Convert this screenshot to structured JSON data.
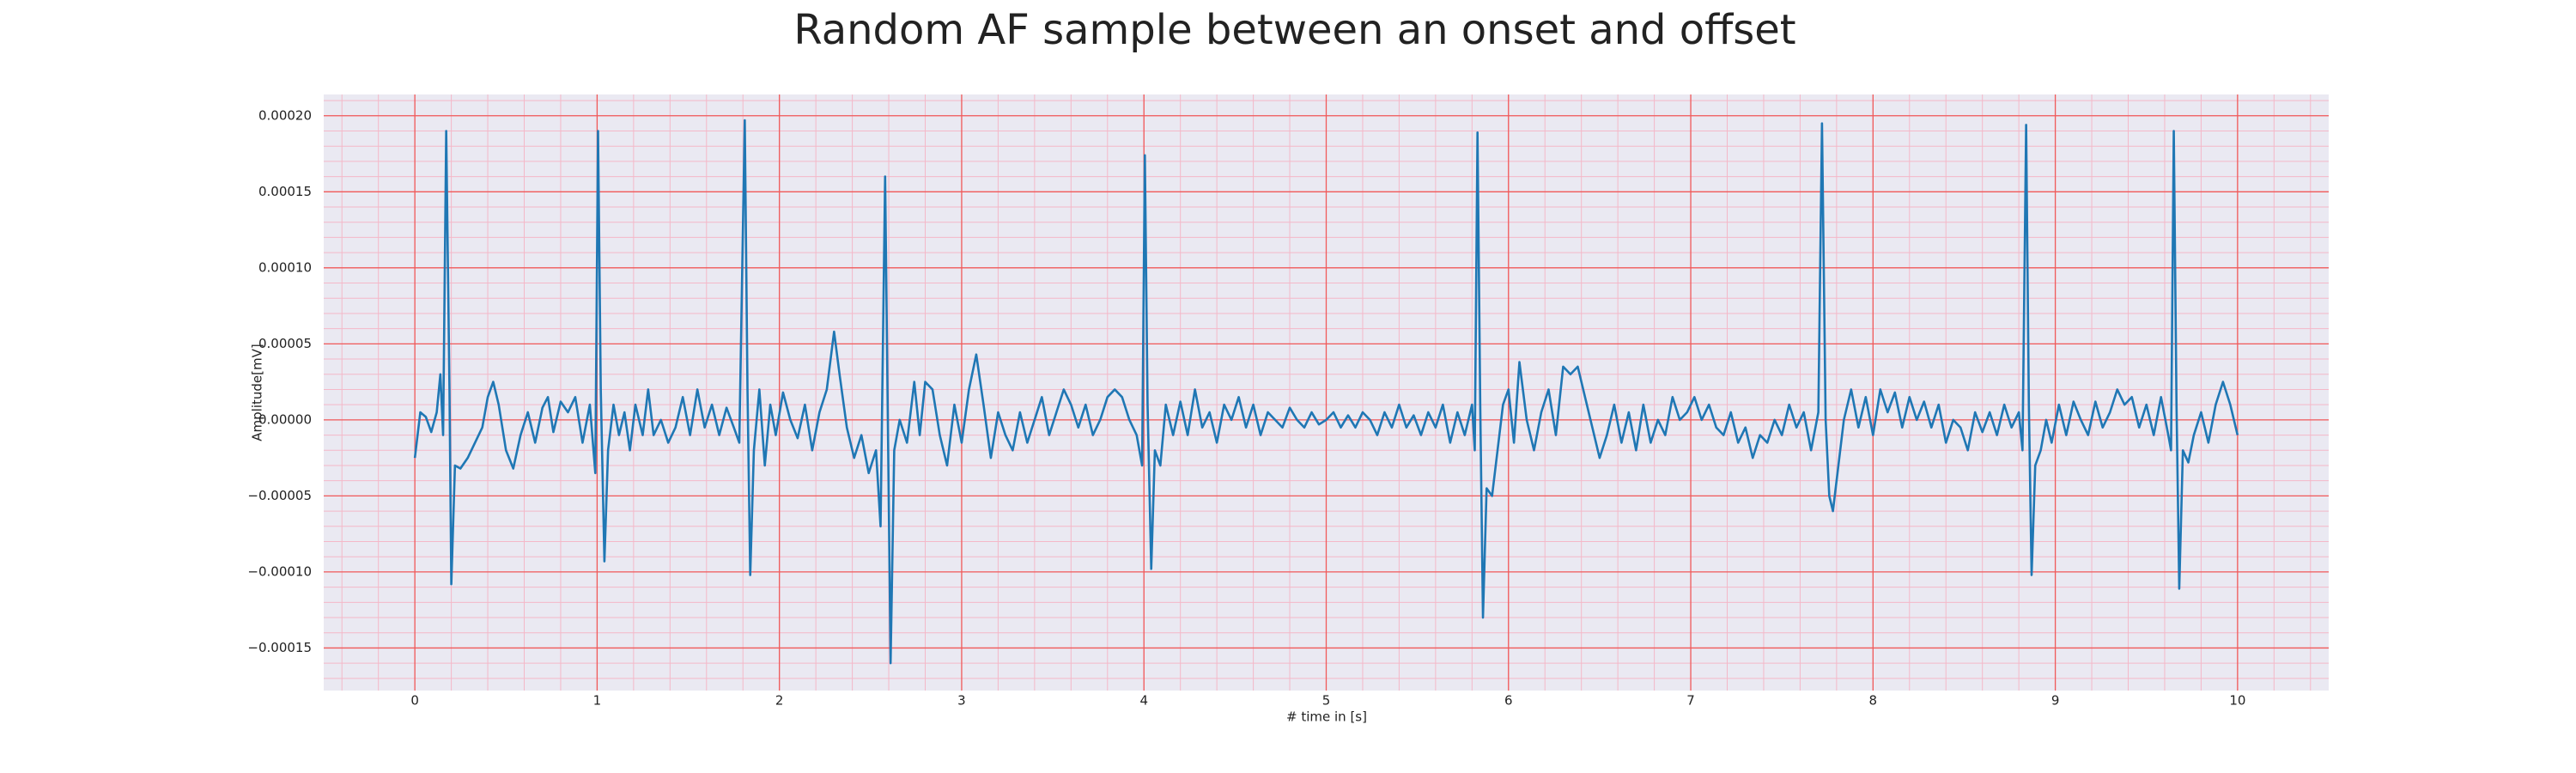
{
  "chart_data": {
    "type": "line",
    "title": "Random AF sample between an onset and offset",
    "x_label": "# time in [s]",
    "y_label": "Amplitude[mV]",
    "xlim": [
      -0.5,
      10.5
    ],
    "ylim": [
      -0.000178,
      0.000214
    ],
    "xticks": [
      0,
      1,
      2,
      3,
      4,
      5,
      6,
      7,
      8,
      9,
      10
    ],
    "yticks": [
      {
        "value": -0.00015,
        "label": "−0.00015"
      },
      {
        "value": -0.0001,
        "label": "−0.00010"
      },
      {
        "value": -5e-05,
        "label": "−0.00005"
      },
      {
        "value": 0,
        "label": "0.00000"
      },
      {
        "value": 5e-05,
        "label": "0.00005"
      },
      {
        "value": 0.0001,
        "label": "0.00010"
      },
      {
        "value": 0.00015,
        "label": "0.00015"
      },
      {
        "value": 0.0002,
        "label": "0.00020"
      }
    ],
    "grid": true,
    "minor_grid": true,
    "grid_color": "#f05a5a",
    "minor_grid_color": "#f4b8c8",
    "background": "#eae9f2",
    "series": [
      {
        "color": "#1f77b4",
        "x": [
          0,
          0.03,
          0.06,
          0.09,
          0.12,
          0.14,
          0.155,
          0.172,
          0.19,
          0.2,
          0.22,
          0.25,
          0.29,
          0.33,
          0.37,
          0.4,
          0.43,
          0.46,
          0.5,
          0.54,
          0.58,
          0.62,
          0.66,
          0.7,
          0.73,
          0.76,
          0.8,
          0.84,
          0.88,
          0.92,
          0.96,
          0.99,
          1.005,
          1.02,
          1.04,
          1.06,
          1.09,
          1.12,
          1.15,
          1.18,
          1.21,
          1.25,
          1.28,
          1.31,
          1.35,
          1.39,
          1.43,
          1.47,
          1.51,
          1.55,
          1.59,
          1.63,
          1.67,
          1.71,
          1.75,
          1.78,
          1.81,
          1.825,
          1.84,
          1.86,
          1.89,
          1.92,
          1.95,
          1.98,
          2.02,
          2.06,
          2.1,
          2.14,
          2.18,
          2.22,
          2.26,
          2.3,
          2.33,
          2.37,
          2.41,
          2.45,
          2.49,
          2.53,
          2.555,
          2.58,
          2.595,
          2.61,
          2.63,
          2.66,
          2.7,
          2.74,
          2.77,
          2.8,
          2.84,
          2.88,
          2.92,
          2.96,
          3,
          3.04,
          3.08,
          3.12,
          3.16,
          3.2,
          3.24,
          3.28,
          3.32,
          3.36,
          3.4,
          3.44,
          3.48,
          3.52,
          3.56,
          3.6,
          3.64,
          3.68,
          3.72,
          3.76,
          3.8,
          3.84,
          3.88,
          3.92,
          3.96,
          3.99,
          4.005,
          4.02,
          4.04,
          4.06,
          4.09,
          4.12,
          4.16,
          4.2,
          4.24,
          4.28,
          4.32,
          4.36,
          4.4,
          4.44,
          4.48,
          4.52,
          4.56,
          4.6,
          4.64,
          4.68,
          4.72,
          4.76,
          4.8,
          4.84,
          4.88,
          4.92,
          4.96,
          5,
          5.04,
          5.08,
          5.12,
          5.16,
          5.2,
          5.24,
          5.28,
          5.32,
          5.36,
          5.4,
          5.44,
          5.48,
          5.52,
          5.56,
          5.6,
          5.64,
          5.68,
          5.72,
          5.76,
          5.8,
          5.815,
          5.83,
          5.845,
          5.86,
          5.88,
          5.91,
          5.94,
          5.97,
          6,
          6.03,
          6.06,
          6.1,
          6.14,
          6.18,
          6.22,
          6.26,
          6.3,
          6.34,
          6.38,
          6.42,
          6.46,
          6.5,
          6.54,
          6.58,
          6.62,
          6.66,
          6.7,
          6.74,
          6.78,
          6.82,
          6.86,
          6.9,
          6.94,
          6.98,
          7.02,
          7.06,
          7.1,
          7.14,
          7.18,
          7.22,
          7.26,
          7.3,
          7.34,
          7.38,
          7.42,
          7.46,
          7.5,
          7.54,
          7.58,
          7.62,
          7.66,
          7.7,
          7.72,
          7.74,
          7.76,
          7.78,
          7.81,
          7.84,
          7.88,
          7.92,
          7.96,
          8,
          8.04,
          8.08,
          8.12,
          8.16,
          8.2,
          8.24,
          8.28,
          8.32,
          8.36,
          8.4,
          8.44,
          8.48,
          8.52,
          8.56,
          8.6,
          8.64,
          8.68,
          8.72,
          8.76,
          8.8,
          8.82,
          8.84,
          8.855,
          8.87,
          8.89,
          8.92,
          8.95,
          8.98,
          9.02,
          9.06,
          9.1,
          9.14,
          9.18,
          9.22,
          9.26,
          9.3,
          9.34,
          9.38,
          9.42,
          9.46,
          9.5,
          9.54,
          9.58,
          9.62,
          9.635,
          9.65,
          9.665,
          9.68,
          9.7,
          9.73,
          9.76,
          9.8,
          9.84,
          9.88,
          9.92,
          9.96,
          10
        ],
        "values": [
          -2.5e-05,
          5e-06,
          2e-06,
          -8e-06,
          5e-06,
          3e-05,
          -1e-05,
          0.00019,
          2e-05,
          -0.000108,
          -3e-05,
          -3.2e-05,
          -2.5e-05,
          -1.5e-05,
          -5e-06,
          1.5e-05,
          2.5e-05,
          1e-05,
          -2e-05,
          -3.2e-05,
          -1e-05,
          5e-06,
          -1.5e-05,
          8e-06,
          1.5e-05,
          -8e-06,
          1.2e-05,
          5e-06,
          1.5e-05,
          -1.5e-05,
          1e-05,
          -3.5e-05,
          0.00019,
          2e-05,
          -9.3e-05,
          -2e-05,
          1e-05,
          -1e-05,
          5e-06,
          -2e-05,
          1e-05,
          -1e-05,
          2e-05,
          -1e-05,
          0,
          -1.5e-05,
          -5e-06,
          1.5e-05,
          -1e-05,
          2e-05,
          -5e-06,
          1e-05,
          -1e-05,
          8e-06,
          -5e-06,
          -1.5e-05,
          0.000197,
          2e-05,
          -0.000102,
          -2e-05,
          2e-05,
          -3e-05,
          1e-05,
          -1e-05,
          1.8e-05,
          0,
          -1.2e-05,
          1e-05,
          -2e-05,
          5e-06,
          2e-05,
          5.8e-05,
          3e-05,
          -5e-06,
          -2.5e-05,
          -1e-05,
          -3.5e-05,
          -2e-05,
          -7e-05,
          0.00016,
          0,
          -0.00016,
          -2e-05,
          0,
          -1.5e-05,
          2.5e-05,
          -1e-05,
          2.5e-05,
          2e-05,
          -1e-05,
          -3e-05,
          1e-05,
          -1.5e-05,
          2e-05,
          4.3e-05,
          1e-05,
          -2.5e-05,
          5e-06,
          -1e-05,
          -2e-05,
          5e-06,
          -1.5e-05,
          0,
          1.5e-05,
          -1e-05,
          5e-06,
          2e-05,
          1e-05,
          -5e-06,
          1e-05,
          -1e-05,
          0,
          1.5e-05,
          2e-05,
          1.5e-05,
          0,
          -1e-05,
          -3e-05,
          0.000174,
          1e-05,
          -9.8e-05,
          -2e-05,
          -3e-05,
          1e-05,
          -1e-05,
          1.2e-05,
          -1e-05,
          2e-05,
          -5e-06,
          5e-06,
          -1.5e-05,
          1e-05,
          0,
          1.5e-05,
          -5e-06,
          1e-05,
          -1e-05,
          5e-06,
          0,
          -5e-06,
          8e-06,
          0,
          -5e-06,
          5e-06,
          -3e-06,
          0,
          5e-06,
          -5e-06,
          3e-06,
          -5e-06,
          5e-06,
          0,
          -1e-05,
          5e-06,
          -5e-06,
          1e-05,
          -5e-06,
          3e-06,
          -1e-05,
          5e-06,
          -5e-06,
          1e-05,
          -1.5e-05,
          5e-06,
          -1e-05,
          1e-05,
          -2e-05,
          0.000189,
          1e-05,
          -0.00013,
          -4.5e-05,
          -5e-05,
          -2e-05,
          1e-05,
          2e-05,
          -1.5e-05,
          3.8e-05,
          0,
          -2e-05,
          5e-06,
          2e-05,
          -1e-05,
          3.5e-05,
          3e-05,
          3.5e-05,
          1.5e-05,
          -5e-06,
          -2.5e-05,
          -1e-05,
          1e-05,
          -1.5e-05,
          5e-06,
          -2e-05,
          1e-05,
          -1.5e-05,
          0,
          -1e-05,
          1.5e-05,
          0,
          5e-06,
          1.5e-05,
          0,
          1e-05,
          -5e-06,
          -1e-05,
          5e-06,
          -1.5e-05,
          -5e-06,
          -2.5e-05,
          -1e-05,
          -1.5e-05,
          0,
          -1e-05,
          1e-05,
          -5e-06,
          5e-06,
          -2e-05,
          5e-06,
          0.000195,
          0,
          -5e-05,
          -6e-05,
          -3e-05,
          0,
          2e-05,
          -5e-06,
          1.5e-05,
          -1e-05,
          2e-05,
          5e-06,
          1.8e-05,
          -5e-06,
          1.5e-05,
          0,
          1.2e-05,
          -5e-06,
          1e-05,
          -1.5e-05,
          0,
          -5e-06,
          -2e-05,
          5e-06,
          -8e-06,
          5e-06,
          -1e-05,
          1e-05,
          -5e-06,
          5e-06,
          -2e-05,
          0.000194,
          1e-05,
          -0.000102,
          -3e-05,
          -2e-05,
          0,
          -1.5e-05,
          1e-05,
          -1e-05,
          1.2e-05,
          0,
          -1e-05,
          1.2e-05,
          -5e-06,
          5e-06,
          2e-05,
          1e-05,
          1.5e-05,
          -5e-06,
          1e-05,
          -1e-05,
          1.5e-05,
          -1e-05,
          -2e-05,
          0.00019,
          1e-05,
          -0.000111,
          -2e-05,
          -2.8e-05,
          -1e-05,
          5e-06,
          -1.5e-05,
          1e-05,
          2.5e-05,
          1e-05,
          -1e-05
        ]
      }
    ]
  }
}
